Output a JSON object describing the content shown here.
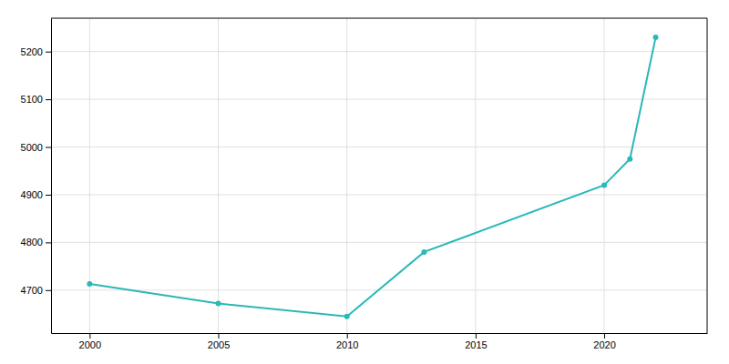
{
  "chart_data": {
    "type": "line",
    "x": [
      2000,
      2005,
      2010,
      2013,
      2020,
      2021,
      2022
    ],
    "values": [
      4713,
      4672,
      4645,
      4780,
      4920,
      4975,
      5230
    ],
    "color": "#2ab8b8",
    "marker": "circle",
    "xlim": [
      1998.5,
      2024.0
    ],
    "ylim": [
      4610,
      5270
    ],
    "xticks": [
      2000,
      2005,
      2010,
      2015,
      2020
    ],
    "yticks": [
      4700,
      4800,
      4900,
      5000,
      5100,
      5200
    ],
    "grid": true
  }
}
